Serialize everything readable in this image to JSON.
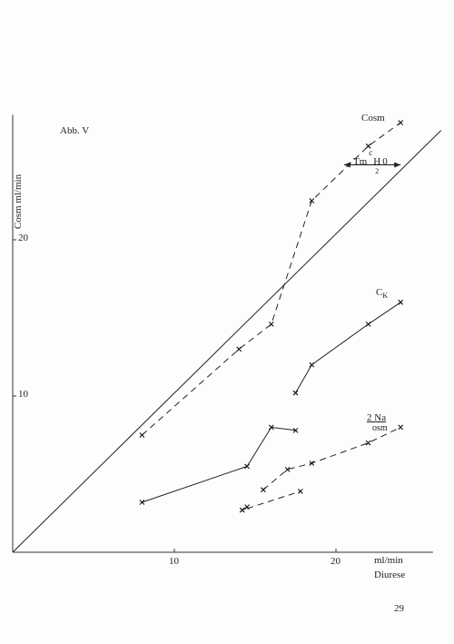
{
  "figure": {
    "label": "Abb. V",
    "page_number": "29"
  },
  "chart_data": {
    "type": "line",
    "title": "",
    "xlabel": "Diurese",
    "xunit": "ml/min",
    "ylabel": "Cosm ml/min",
    "xlim": [
      0,
      26
    ],
    "ylim": [
      0,
      28
    ],
    "xticks": [
      10,
      20
    ],
    "yticks": [
      10,
      20
    ],
    "grid": false,
    "legend": "none",
    "series": [
      {
        "name": "Cosm",
        "style": "dashed",
        "label_parts": [
          "Cosm"
        ],
        "x": [
          8,
          14,
          16,
          18.5,
          22,
          24
        ],
        "y": [
          7.5,
          13,
          14.6,
          22.5,
          26,
          27.5
        ]
      },
      {
        "name": "TmcH2O",
        "style": "arrow",
        "label_parts": [
          "Tm",
          "c",
          "H",
          "2",
          "0"
        ],
        "x": [
          24,
          20.5
        ],
        "y": [
          24.8,
          24.8
        ]
      },
      {
        "name": "CK",
        "style": "solid",
        "label_parts": [
          "C",
          "K"
        ],
        "x": [
          17.5,
          18.5,
          22,
          24
        ],
        "y": [
          10.2,
          12,
          14.6,
          16
        ]
      },
      {
        "name": "2 Na osm",
        "style": "dashed",
        "label_parts": [
          "2 Na",
          "osm"
        ],
        "x": [
          15.5,
          17,
          18.5,
          22,
          24
        ],
        "y": [
          4,
          5.3,
          5.7,
          7,
          8
        ]
      },
      {
        "name": "",
        "style": "solid",
        "x": [
          8,
          14.5,
          16,
          17.5
        ],
        "y": [
          3.2,
          5.5,
          8,
          7.8
        ]
      },
      {
        "name": "",
        "style": "dashed",
        "x": [
          14.5,
          14.2,
          17.8
        ],
        "y": [
          2.9,
          2.7,
          3.9
        ]
      }
    ],
    "reference_line": {
      "name": "",
      "style": "solid",
      "x": [
        0,
        26.5
      ],
      "y": [
        0,
        27
      ]
    }
  }
}
